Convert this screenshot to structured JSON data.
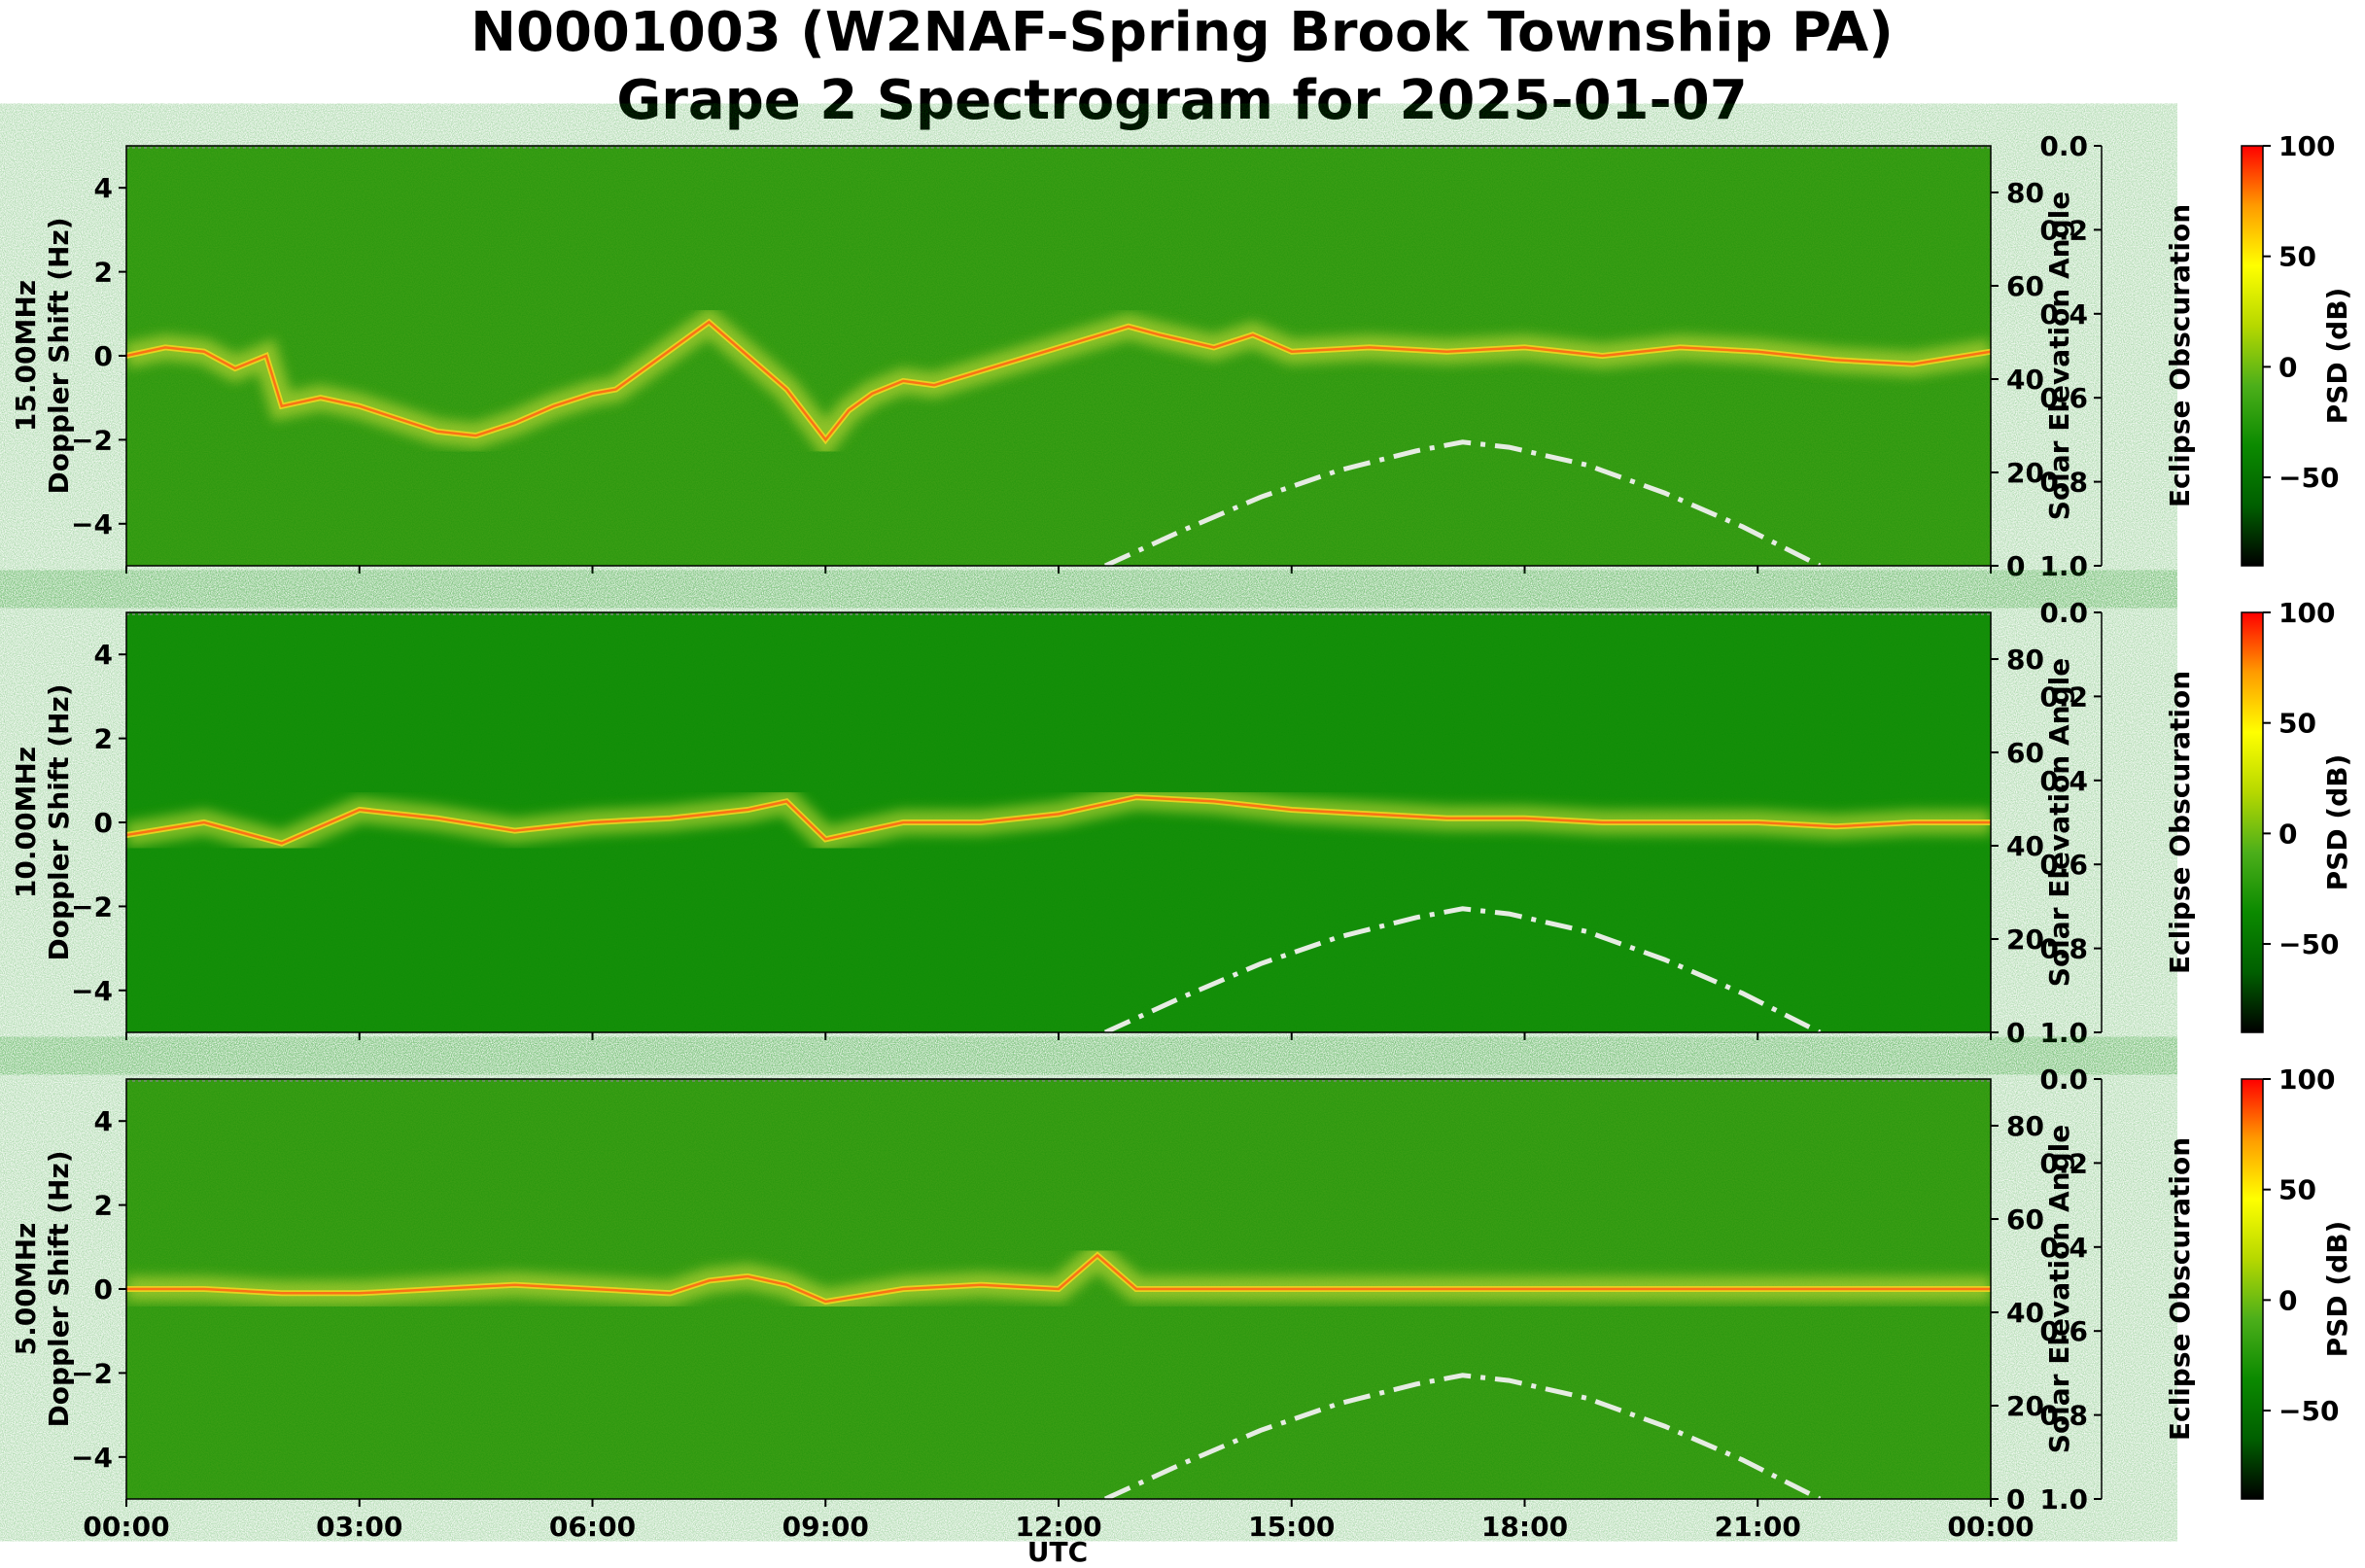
{
  "chart_data": {
    "type": "heatmap",
    "title": "N0001003 (W2NAF-Spring Brook Township PA)",
    "subtitle": "Grape 2 Spectrogram for 2025-01-07",
    "xlabel": "UTC",
    "x_ticks": [
      "00:00",
      "03:00",
      "06:00",
      "09:00",
      "12:00",
      "15:00",
      "18:00",
      "21:00",
      "00:00"
    ],
    "x_range_hours": [
      0,
      24
    ],
    "ylabel": "Doppler Shift (Hz)",
    "y_range": [
      -5,
      5
    ],
    "y_ticks": [
      "4",
      "2",
      "0",
      "−2",
      "−4"
    ],
    "y_tick_values": [
      4,
      2,
      0,
      -2,
      -4
    ],
    "right_axis": {
      "label": "Solar Elevation Angle",
      "range": [
        0,
        90
      ],
      "ticks": [
        "80",
        "60",
        "40",
        "20",
        "0"
      ],
      "tick_values": [
        80,
        60,
        40,
        20,
        0
      ]
    },
    "eclipse_axis": {
      "label": "Eclipse Obscuration",
      "range": [
        0.0,
        1.0
      ],
      "ticks": [
        "0.0",
        "0.2",
        "0.4",
        "0.6",
        "0.8",
        "1.0"
      ],
      "tick_values": [
        0.0,
        0.2,
        0.4,
        0.6,
        0.8,
        1.0
      ]
    },
    "colorbar": {
      "label": "PSD (dB)",
      "range": [
        -90,
        100
      ],
      "ticks": [
        "100",
        "50",
        "0",
        "−50"
      ],
      "tick_values": [
        100,
        50,
        0,
        -50
      ],
      "colors": [
        "#000000",
        "#005f00",
        "#0b8a00",
        "#4caf1a",
        "#b6d800",
        "#ffff00",
        "#ff9b00",
        "#ff0000"
      ]
    },
    "solar_elevation_curve": {
      "style": "dash-dot",
      "color": "#e6ece3",
      "hours": [
        12.6,
        13.6,
        14.6,
        15.6,
        16.6,
        17.2,
        17.8,
        18.8,
        19.8,
        20.8,
        21.8
      ],
      "elevation_deg": [
        0,
        7.6,
        14.7,
        20.4,
        24.6,
        26.5,
        25.4,
        21.6,
        15.6,
        8.4,
        0
      ]
    },
    "series": [
      {
        "name": "15.00MHz",
        "trace_hours": [
          0,
          0.5,
          1.0,
          1.4,
          1.8,
          2.0,
          2.5,
          3.0,
          3.5,
          4.0,
          4.5,
          5.0,
          5.5,
          6.0,
          6.3,
          7.5,
          8.0,
          8.5,
          9.0,
          9.3,
          9.6,
          10.0,
          10.4,
          12.9,
          13.3,
          14.0,
          14.5,
          15.0,
          16.0,
          17.0,
          18.0,
          19.0,
          20.0,
          21.0,
          22.0,
          23.0,
          24.0
        ],
        "trace_hz": [
          0.0,
          0.2,
          0.1,
          -0.3,
          0.0,
          -1.2,
          -1.0,
          -1.2,
          -1.5,
          -1.8,
          -1.9,
          -1.6,
          -1.2,
          -0.9,
          -0.8,
          0.8,
          0.0,
          -0.8,
          -2.0,
          -1.3,
          -0.9,
          -0.6,
          -0.7,
          0.7,
          0.5,
          0.2,
          0.5,
          0.1,
          0.2,
          0.1,
          0.2,
          0.0,
          0.2,
          0.1,
          -0.1,
          -0.2,
          0.1
        ]
      },
      {
        "name": "10.00MHz",
        "trace_hours": [
          0,
          1.0,
          2.0,
          3.0,
          4.0,
          5.0,
          6.0,
          7.0,
          8.0,
          8.5,
          9.0,
          10.0,
          11.0,
          12.0,
          12.5,
          13.0,
          14.0,
          15.0,
          16.0,
          17.0,
          18.0,
          19.0,
          20.0,
          21.0,
          22.0,
          23.0,
          24.0
        ],
        "trace_hz": [
          -0.3,
          0.0,
          -0.5,
          0.3,
          0.1,
          -0.2,
          0.0,
          0.1,
          0.3,
          0.5,
          -0.4,
          0.0,
          0.0,
          0.2,
          0.4,
          0.6,
          0.5,
          0.3,
          0.2,
          0.1,
          0.1,
          0.0,
          0.0,
          0.0,
          -0.1,
          0.0,
          0.0
        ]
      },
      {
        "name": "5.00MHz",
        "trace_hours": [
          0,
          1.0,
          2.0,
          3.0,
          4.0,
          5.0,
          6.0,
          7.0,
          7.5,
          8.0,
          8.5,
          9.0,
          10.0,
          11.0,
          12.0,
          12.5,
          13.0,
          14.0,
          15.0,
          16.0,
          17.0,
          18.0,
          19.0,
          20.0,
          21.0,
          22.0,
          23.0,
          24.0
        ],
        "trace_hz": [
          0.0,
          0.0,
          -0.1,
          -0.1,
          0.0,
          0.1,
          0.0,
          -0.1,
          0.2,
          0.3,
          0.1,
          -0.3,
          0.0,
          0.1,
          0.0,
          0.8,
          0.0,
          0.0,
          0.0,
          0.0,
          0.0,
          0.0,
          0.0,
          0.0,
          0.0,
          0.0,
          0.0,
          0.0
        ]
      }
    ]
  }
}
